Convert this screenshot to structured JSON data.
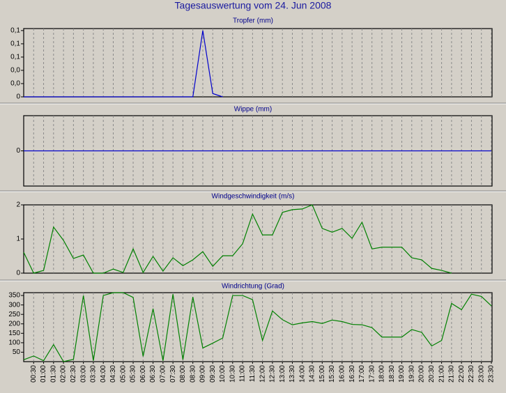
{
  "title": "Tagesauswertung vom 24. Jun 2008",
  "chart_data": [
    {
      "type": "line",
      "title": "Tropfer (mm)",
      "color": "#0000cc",
      "ylim": [
        0,
        0.103
      ],
      "yticks": [
        {
          "value": 0.1,
          "label": "0,1"
        },
        {
          "value": 0.08,
          "label": "0,1"
        },
        {
          "value": 0.06,
          "label": "0,1"
        },
        {
          "value": 0.04,
          "label": "0,0"
        },
        {
          "value": 0.02,
          "label": "0,0"
        },
        0
      ],
      "values": [
        0,
        0,
        0,
        0,
        0,
        0,
        0,
        0,
        0,
        0,
        0,
        0,
        0,
        0,
        0,
        0,
        0,
        0,
        0.1,
        0.005,
        0,
        null,
        null,
        null,
        null,
        null,
        null,
        null,
        null,
        null,
        null,
        null,
        null,
        null,
        null,
        null,
        null,
        null,
        null,
        null,
        null,
        null,
        null,
        null,
        null,
        null,
        null,
        null
      ]
    },
    {
      "type": "line",
      "title": "Wippe (mm)",
      "color": "#0000cc",
      "ylim": [
        -1,
        1
      ],
      "yticks": [
        0
      ],
      "values": [
        0,
        0,
        0,
        0,
        0,
        0,
        0,
        0,
        0,
        0,
        0,
        0,
        0,
        0,
        0,
        0,
        0,
        0,
        0,
        0,
        0,
        0,
        0,
        0,
        0,
        0,
        0,
        0,
        0,
        0,
        0,
        0,
        0,
        0,
        0,
        0,
        0,
        0,
        0,
        0,
        0,
        0,
        0,
        0,
        0,
        0,
        0,
        0
      ]
    },
    {
      "type": "line",
      "title": "Windgeschwindigkeit (m/s)",
      "color": "#008000",
      "ylim": [
        0,
        2
      ],
      "yticks": [
        2,
        1,
        0
      ],
      "values": [
        0.61,
        0,
        0.08,
        1.35,
        0.96,
        0.43,
        0.53,
        0,
        0,
        0.12,
        0.02,
        0.71,
        0.02,
        0.49,
        0.06,
        0.45,
        0.22,
        0.39,
        0.63,
        0.2,
        0.51,
        0.51,
        0.86,
        1.73,
        1.12,
        1.12,
        1.78,
        1.86,
        1.88,
        2.0,
        1.31,
        1.2,
        1.31,
        1.02,
        1.49,
        0.71,
        0.76,
        0.76,
        0.76,
        0.45,
        0.39,
        0.14,
        0.08,
        0,
        null,
        null,
        null,
        null
      ]
    },
    {
      "type": "line",
      "title": "Windrichtung (Grad)",
      "color": "#008000",
      "ylim": [
        0,
        365
      ],
      "yticks": [
        350,
        300,
        250,
        200,
        150,
        100,
        50
      ],
      "categories": [
        null,
        "00:30",
        "01:00",
        "01:30",
        "02:00",
        "02:30",
        "03:00",
        "03:30",
        "04:00",
        "04:30",
        "05:00",
        "05:30",
        "06:00",
        "06:30",
        "07:00",
        "07:30",
        "08:00",
        "08:30",
        "09:00",
        "09:30",
        "10:00",
        "10:30",
        "11:00",
        "11:30",
        "12:00",
        "12:30",
        "13:00",
        "13:30",
        "14:00",
        "14:30",
        "15:00",
        "15:30",
        "16:00",
        "16:30",
        "17:00",
        "17:30",
        "18:00",
        "18:30",
        "19:00",
        "19:30",
        "20:00",
        "20:30",
        "21:00",
        "21:30",
        "22:00",
        "22:30",
        "23:00",
        "23:30"
      ],
      "values": [
        10,
        30,
        5,
        90,
        0,
        12,
        350,
        5,
        350,
        365,
        365,
        340,
        28,
        280,
        5,
        357,
        10,
        342,
        72,
        98,
        125,
        350,
        350,
        328,
        112,
        268,
        222,
        195,
        205,
        212,
        202,
        220,
        212,
        197,
        195,
        180,
        130,
        130,
        130,
        170,
        155,
        83,
        112,
        308,
        275,
        357,
        345,
        295
      ]
    }
  ]
}
